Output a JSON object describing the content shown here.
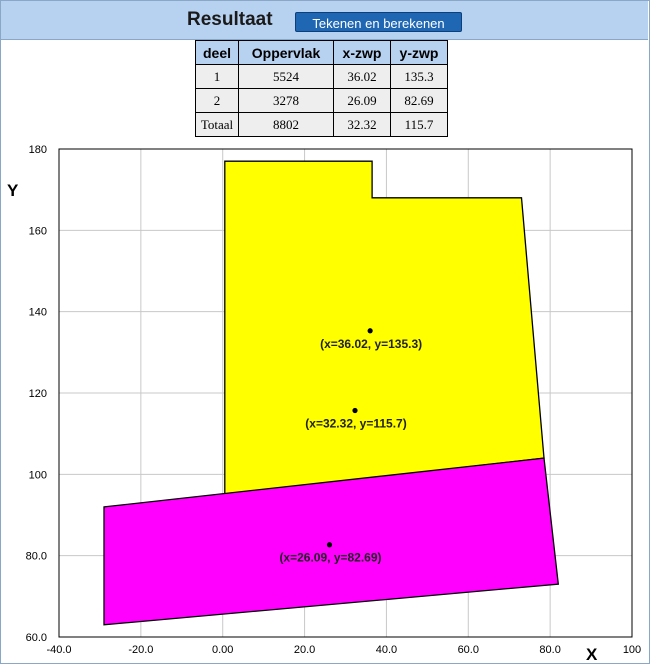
{
  "header": {
    "title": "Resultaat",
    "button_label": "Tekenen en berekenen"
  },
  "table": {
    "headers": [
      "deel",
      "Oppervlak",
      "x-zwp",
      "y-zwp"
    ],
    "rows": [
      [
        "1",
        "5524",
        "36.02",
        "135.3"
      ],
      [
        "2",
        "3278",
        "26.09",
        "82.69"
      ],
      [
        "Totaal",
        "8802",
        "32.32",
        "115.7"
      ]
    ]
  },
  "colors": {
    "part1_fill": "#ffff00",
    "part2_fill": "#ff00ff",
    "header_bg": "#b7d1f0",
    "button_bg": "#1f66b3"
  },
  "chart_data": {
    "type": "scatter",
    "xlabel": "X",
    "ylabel": "Y",
    "xlim": [
      -40,
      100
    ],
    "ylim": [
      60,
      180
    ],
    "x_ticks": [
      "-40.0",
      "-20.0",
      "0.00",
      "20.0",
      "40.0",
      "60.0",
      "80.0",
      "100"
    ],
    "y_ticks": [
      "60.0",
      "80.0",
      "100",
      "120",
      "140",
      "160",
      "180"
    ],
    "grid": true,
    "polygons": [
      {
        "part": "1",
        "color": "#ffff00",
        "points": [
          [
            0.5,
            95
          ],
          [
            0.5,
            177
          ],
          [
            36.5,
            177
          ],
          [
            36.5,
            168
          ],
          [
            73,
            168
          ],
          [
            78.5,
            104
          ]
        ]
      },
      {
        "part": "2",
        "color": "#ff00ff",
        "points": [
          [
            -29,
            92
          ],
          [
            78.5,
            104
          ],
          [
            82,
            73
          ],
          [
            -29,
            63
          ]
        ]
      }
    ],
    "centroids": [
      {
        "x": 36.02,
        "y": 135.3,
        "label": "(x=36.02, y=135.3)"
      },
      {
        "x": 32.32,
        "y": 115.7,
        "label": "(x=32.32, y=115.7)"
      },
      {
        "x": 26.09,
        "y": 82.69,
        "label": "(x=26.09, y=82.69)"
      }
    ]
  }
}
